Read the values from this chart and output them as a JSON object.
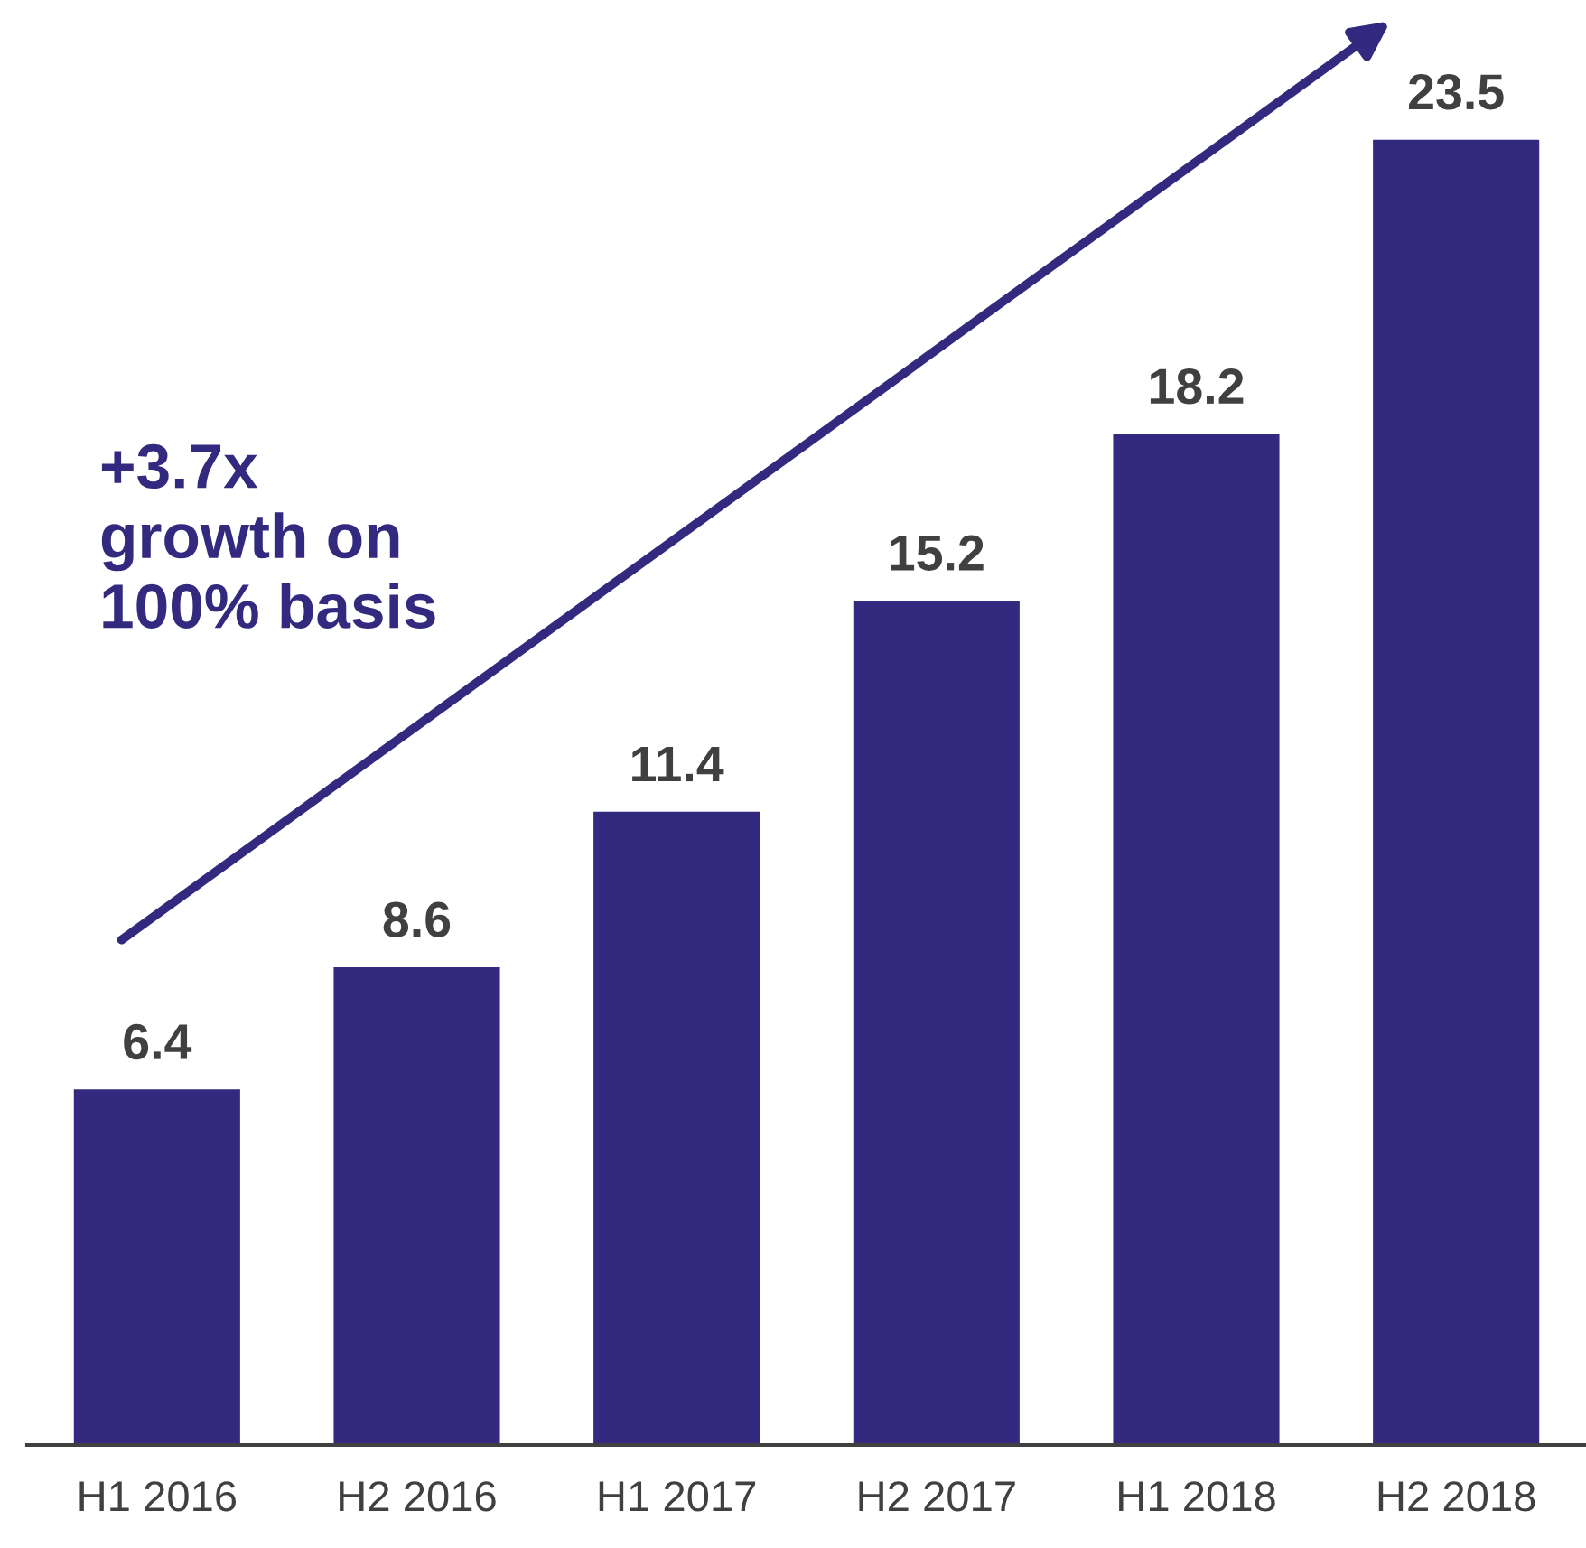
{
  "chart_data": {
    "type": "bar",
    "categories": [
      "H1 2016",
      "H2 2016",
      "H1 2017",
      "H2 2017",
      "H1 2018",
      "H2 2018"
    ],
    "values": [
      6.4,
      8.6,
      11.4,
      15.2,
      18.2,
      23.5
    ],
    "color": "#332a80",
    "data_labels": true,
    "annotations": [
      "+3.7x\ngrowth on\n100% basis"
    ],
    "grid": false,
    "legend": false
  }
}
